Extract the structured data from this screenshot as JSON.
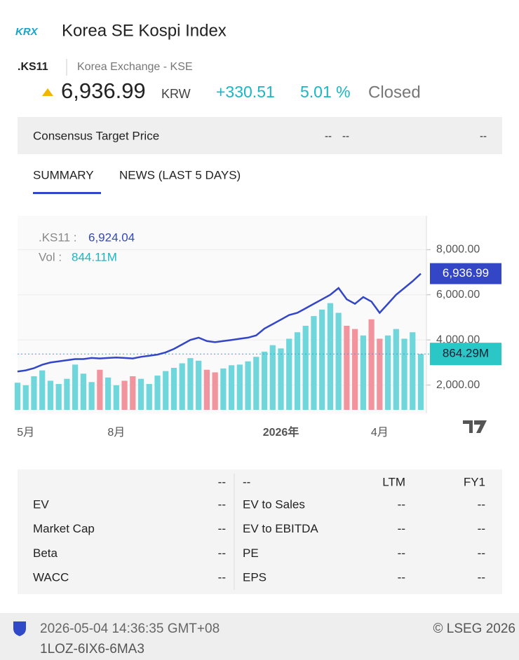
{
  "header": {
    "logo": "KRX",
    "title": "Korea SE Kospi Index",
    "ticker": ".KS11",
    "exchange": "Korea Exchange - KSE",
    "price": "6,936.99",
    "currency": "KRW",
    "change": "+330.51",
    "change_pct": "5.01 %",
    "status": "Closed"
  },
  "consensus": {
    "label": "Consensus Target Price",
    "values": [
      "--",
      "--",
      "--"
    ]
  },
  "tabs": [
    "SUMMARY",
    "NEWS (LAST 5 DAYS)"
  ],
  "chart_data": {
    "type": "line",
    "categories": [
      null,
      "5月",
      null,
      null,
      null,
      null,
      null,
      null,
      null,
      null,
      null,
      null,
      "8月",
      null,
      null,
      null,
      null,
      null,
      null,
      null,
      null,
      null,
      null,
      null,
      null,
      null,
      null,
      null,
      null,
      null,
      null,
      null,
      "2026年",
      null,
      null,
      null,
      null,
      null,
      null,
      null,
      null,
      null,
      null,
      null,
      "4月",
      null,
      null,
      null,
      null,
      null
    ],
    "series": [
      {
        "name": ".KS11",
        "color": "#3347c6",
        "values": [
          2600,
          2650,
          2750,
          2900,
          3000,
          3050,
          3100,
          3150,
          3150,
          3200,
          3180,
          3200,
          3220,
          3200,
          3180,
          3250,
          3300,
          3350,
          3450,
          3600,
          3800,
          4000,
          4100,
          3950,
          3900,
          3950,
          4000,
          4050,
          4100,
          4200,
          4500,
          4700,
          4900,
          5100,
          5200,
          5400,
          5600,
          5800,
          6000,
          6300,
          5800,
          5600,
          5900,
          5700,
          5200,
          5600,
          6000,
          6300,
          6600,
          6936.99
        ]
      },
      {
        "name": "Vol",
        "axis": "y2",
        "up_color": "#6fd6db",
        "down_color": "#f2949d",
        "values": [
          420,
          380,
          520,
          610,
          450,
          400,
          480,
          700,
          560,
          430,
          620,
          500,
          380,
          450,
          520,
          480,
          400,
          530,
          600,
          650,
          720,
          800,
          760,
          620,
          580,
          640,
          690,
          700,
          750,
          820,
          900,
          1000,
          950,
          1100,
          1200,
          1300,
          1450,
          1550,
          1650,
          1500,
          1300,
          1250,
          1150,
          1400,
          1100,
          1150,
          1250,
          1100,
          1200,
          864.29
        ]
      }
    ],
    "ylim": [
      900,
      9500
    ],
    "yticks": [
      {
        "value": 2000,
        "label": "2,000.00"
      },
      {
        "value": 4000,
        "label": "4,000.00"
      },
      {
        "value": 6000,
        "label": "6,000.00"
      },
      {
        "value": 8000,
        "label": "8,000.00"
      }
    ],
    "y2lim": [
      0,
      3000
    ],
    "legend_price_name": ".KS11 :",
    "legend_price": "6,924.04",
    "legend_volume_name": "Vol :",
    "legend_volume": "844.11M",
    "price_tag": "6,936.99",
    "volume_tag": "864.29M",
    "grid": true
  },
  "table": {
    "header": [
      "--",
      "--",
      "LTM",
      "FY1"
    ],
    "rows": [
      [
        "EV",
        "--",
        "EV to Sales",
        "--",
        "--"
      ],
      [
        "Market Cap",
        "--",
        "EV to EBITDA",
        "--",
        "--"
      ],
      [
        "Beta",
        "--",
        "PE",
        "--",
        "--"
      ],
      [
        "WACC",
        "--",
        "EPS",
        "--",
        "--"
      ]
    ]
  },
  "footer": {
    "timestamp": "2026-05-04 14:36:35 GMT+08",
    "copyright": "© LSEG 2026",
    "code": "1LOZ-6IX6-6MA3"
  }
}
